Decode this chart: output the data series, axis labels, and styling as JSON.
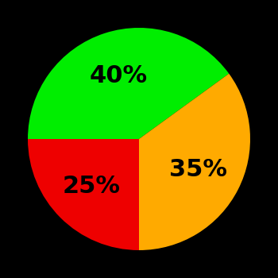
{
  "slices": [
    {
      "label": "40%",
      "value": 40,
      "color": "#00ee00"
    },
    {
      "label": "35%",
      "value": 35,
      "color": "#ffaa00"
    },
    {
      "label": "25%",
      "value": 25,
      "color": "#ee0000"
    }
  ],
  "background_color": "#000000",
  "label_fontsize": 22,
  "label_fontweight": "bold",
  "startangle": 180,
  "counterclock": false,
  "figsize": [
    3.5,
    3.5
  ],
  "dpi": 100
}
